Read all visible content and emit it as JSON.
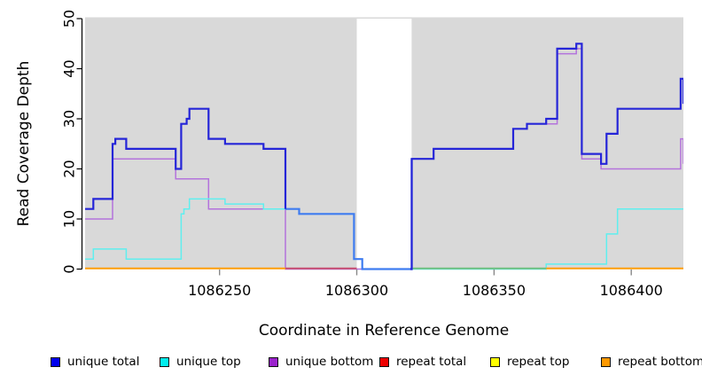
{
  "chart_data": {
    "type": "step-line",
    "title": "",
    "xlabel": "Coordinate in Reference Genome",
    "ylabel": "Read Coverage Depth",
    "xlim": [
      1086201,
      1086419
    ],
    "ylim": [
      0,
      50
    ],
    "x_ticks": [
      1086250,
      1086300,
      1086350,
      1086400
    ],
    "y_ticks": [
      0,
      10,
      20,
      30,
      40,
      50
    ],
    "grid": false,
    "legend_position": "bottom",
    "colors": {
      "plot_background": "#d9d9d9",
      "gap_fill": "#ffffff",
      "y_axis": "#000000",
      "x_tick": "#888888",
      "unique_total_line": "#2525d8",
      "unique_total_over_top_line": "#3e7cf0",
      "unique_top_line": "#5fefef",
      "unique_bottom_line": "#b473dc",
      "baseline_orange": "#ff9d0a",
      "baseline_crimson": "#c85070",
      "baseline_green": "#72bf80"
    },
    "gap_region": {
      "from": 1086300,
      "to": 1086320
    },
    "bright_total_span": {
      "from": 1086274,
      "to": 1086320
    },
    "series": [
      {
        "name": "unique total",
        "color": "#2525d8",
        "width": 2.2,
        "steps": [
          [
            1086201,
            12
          ],
          [
            1086204,
            14
          ],
          [
            1086211,
            25
          ],
          [
            1086212,
            26
          ],
          [
            1086216,
            24
          ],
          [
            1086234,
            20
          ],
          [
            1086236,
            29
          ],
          [
            1086238,
            30
          ],
          [
            1086239,
            32
          ],
          [
            1086246,
            26
          ],
          [
            1086252,
            25
          ],
          [
            1086266,
            24
          ],
          [
            1086274,
            12
          ],
          [
            1086279,
            11
          ],
          [
            1086299,
            2
          ],
          [
            1086302,
            0
          ],
          [
            1086320,
            22
          ],
          [
            1086328,
            24
          ],
          [
            1086357,
            28
          ],
          [
            1086362,
            29
          ],
          [
            1086369,
            30
          ],
          [
            1086373,
            44
          ],
          [
            1086380,
            45
          ],
          [
            1086382,
            23
          ],
          [
            1086389,
            21
          ],
          [
            1086391,
            27
          ],
          [
            1086395,
            32
          ],
          [
            1086418,
            38
          ],
          [
            1086419,
            33
          ]
        ]
      },
      {
        "name": "unique top",
        "color": "#5fefef",
        "width": 1.5,
        "steps": [
          [
            1086201,
            2
          ],
          [
            1086204,
            4
          ],
          [
            1086216,
            2
          ],
          [
            1086236,
            11
          ],
          [
            1086237,
            12
          ],
          [
            1086239,
            14
          ],
          [
            1086252,
            13
          ],
          [
            1086266,
            12
          ],
          [
            1086279,
            11
          ],
          [
            1086299,
            2
          ],
          [
            1086302,
            0
          ],
          [
            1086369,
            1
          ],
          [
            1086391,
            7
          ],
          [
            1086395,
            12
          ]
        ]
      },
      {
        "name": "unique bottom",
        "color": "#b473dc",
        "width": 1.5,
        "steps": [
          [
            1086201,
            10
          ],
          [
            1086211,
            22
          ],
          [
            1086234,
            18
          ],
          [
            1086246,
            12
          ],
          [
            1086274,
            0
          ],
          [
            1086320,
            22
          ],
          [
            1086328,
            24
          ],
          [
            1086357,
            28
          ],
          [
            1086362,
            29
          ],
          [
            1086373,
            43
          ],
          [
            1086380,
            44
          ],
          [
            1086382,
            22
          ],
          [
            1086389,
            20
          ],
          [
            1086418,
            26
          ],
          [
            1086419,
            21
          ]
        ]
      },
      {
        "name": "repeat total",
        "color": "#ee0000",
        "width": 1.5,
        "steps": [
          [
            1086201,
            0
          ]
        ]
      },
      {
        "name": "repeat top",
        "color": "#ffff00",
        "width": 1.5,
        "steps": [
          [
            1086201,
            0
          ]
        ]
      },
      {
        "name": "repeat bottom",
        "color": "#ff9900",
        "width": 1.5,
        "steps": [
          [
            1086201,
            0
          ]
        ]
      }
    ],
    "baseline_segments": [
      {
        "from": 1086201,
        "to": 1086274,
        "color": "#ff9d0a"
      },
      {
        "from": 1086274,
        "to": 1086300,
        "color": "#c85070"
      },
      {
        "from": 1086320,
        "to": 1086369,
        "color": "#72bf80"
      },
      {
        "from": 1086369,
        "to": 1086419,
        "color": "#ff9d0a"
      }
    ],
    "legend": [
      {
        "label": "unique total",
        "color": "#0000ee"
      },
      {
        "label": "unique top",
        "color": "#00eeee"
      },
      {
        "label": "unique bottom",
        "color": "#9b22cc"
      },
      {
        "label": "repeat total",
        "color": "#ee0000"
      },
      {
        "label": "repeat top",
        "color": "#ffff00"
      },
      {
        "label": "repeat bottom",
        "color": "#ff9900"
      }
    ]
  }
}
